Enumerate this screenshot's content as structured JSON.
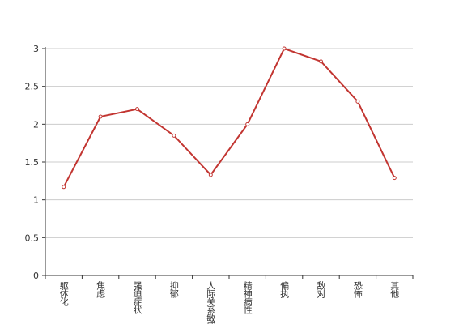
{
  "chart_data": {
    "type": "line",
    "categories": [
      "躯体化",
      "焦虑",
      "强迫症状",
      "抑郁",
      "人际关系敏感",
      "精神病性",
      "偏执",
      "敌对",
      "恐怖",
      "其他"
    ],
    "series": [
      {
        "color": "#c23531",
        "values": [
          1.17,
          2.1,
          2.2,
          1.85,
          1.33,
          2.0,
          3.0,
          2.83,
          2.3,
          1.29
        ]
      }
    ],
    "ylim": [
      0,
      3
    ],
    "yticks": [
      0,
      0.5,
      1,
      1.5,
      2,
      2.5,
      3
    ],
    "grid": true
  }
}
